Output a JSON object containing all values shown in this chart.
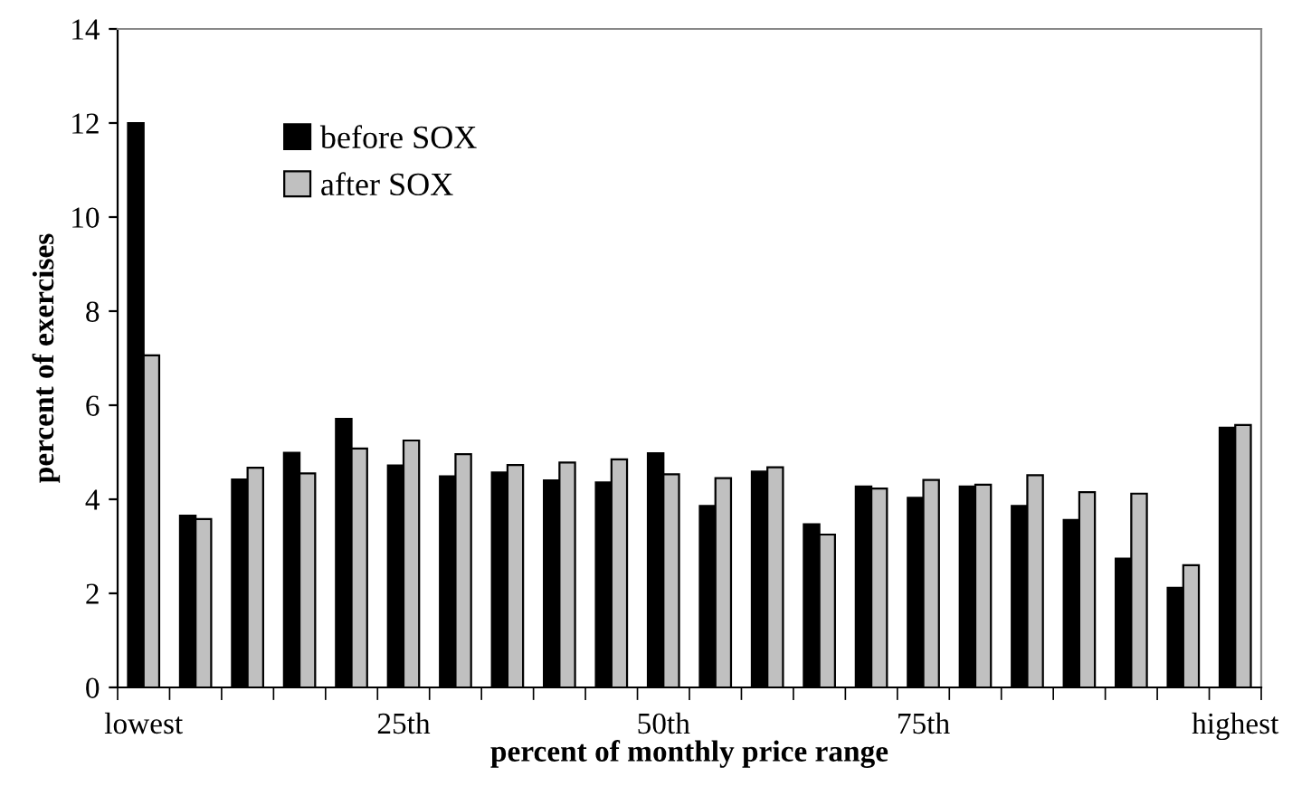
{
  "chart_data": {
    "type": "bar",
    "xlabel": "percent of monthly price range",
    "ylabel": "percent of exercises",
    "categories": [
      "lowest",
      null,
      null,
      null,
      null,
      "25th",
      null,
      null,
      null,
      null,
      "50th",
      null,
      null,
      null,
      null,
      "75th",
      null,
      null,
      null,
      null,
      null,
      "highest"
    ],
    "series": [
      {
        "name": "before SOX",
        "color": "#000000",
        "values": [
          12.0,
          3.65,
          4.42,
          4.99,
          5.71,
          4.72,
          4.49,
          4.57,
          4.4,
          4.36,
          4.98,
          3.86,
          4.59,
          3.47,
          4.27,
          4.03,
          4.27,
          3.86,
          3.56,
          2.74,
          2.12,
          5.52
        ]
      },
      {
        "name": "after SOX",
        "color": "#c0c0c0",
        "values": [
          7.06,
          3.58,
          4.67,
          4.55,
          5.08,
          5.25,
          4.96,
          4.73,
          4.78,
          4.85,
          4.53,
          4.45,
          4.68,
          3.25,
          4.23,
          4.41,
          4.31,
          4.51,
          4.15,
          4.12,
          2.6,
          5.58
        ]
      }
    ],
    "ylim": [
      0,
      14
    ],
    "yticks": [
      0,
      2,
      4,
      6,
      8,
      10,
      12,
      14
    ],
    "grid": false,
    "legend": "top left"
  }
}
